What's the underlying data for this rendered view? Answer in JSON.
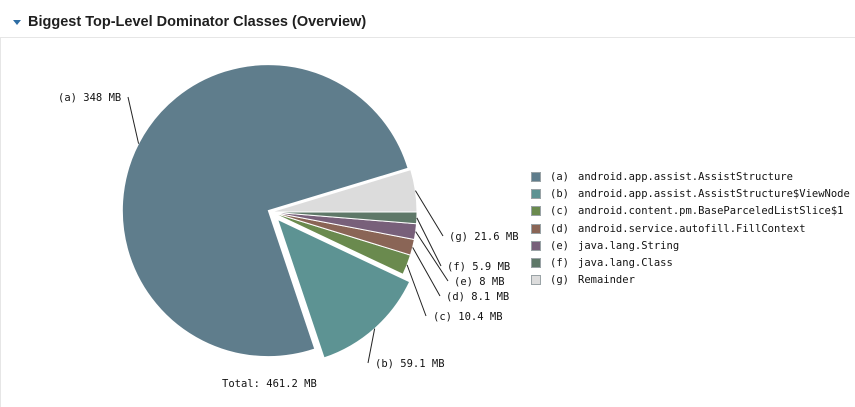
{
  "header": {
    "title": "Biggest Top-Level Dominator Classes (Overview)",
    "toggle_icon": "triangle-down-icon"
  },
  "chart_data": {
    "type": "pie",
    "total_label": "Total: 461.2 MB",
    "slices": [
      {
        "key": "(a)",
        "name": "android.app.assist.AssistStructure",
        "value": 348,
        "label": "348 MB",
        "color": "#5f7d8c"
      },
      {
        "key": "(b)",
        "name": "android.app.assist.AssistStructure$ViewNode",
        "value": 59.1,
        "label": "59.1 MB",
        "color": "#5d9393"
      },
      {
        "key": "(c)",
        "name": "android.content.pm.BaseParceledListSlice$1",
        "value": 10.4,
        "label": "10.4 MB",
        "color": "#6a8a4e"
      },
      {
        "key": "(d)",
        "name": "android.service.autofill.FillContext",
        "value": 8.1,
        "label": "8.1 MB",
        "color": "#8a6556"
      },
      {
        "key": "(e)",
        "name": "java.lang.String",
        "value": 8,
        "label": "8 MB",
        "color": "#78607a"
      },
      {
        "key": "(f)",
        "name": "java.lang.Class",
        "value": 5.9,
        "label": "5.9 MB",
        "color": "#5e7868"
      },
      {
        "key": "(g)",
        "name": "Remainder",
        "value": 21.6,
        "label": "21.6 MB",
        "color": "#dcdcdc"
      }
    ]
  }
}
